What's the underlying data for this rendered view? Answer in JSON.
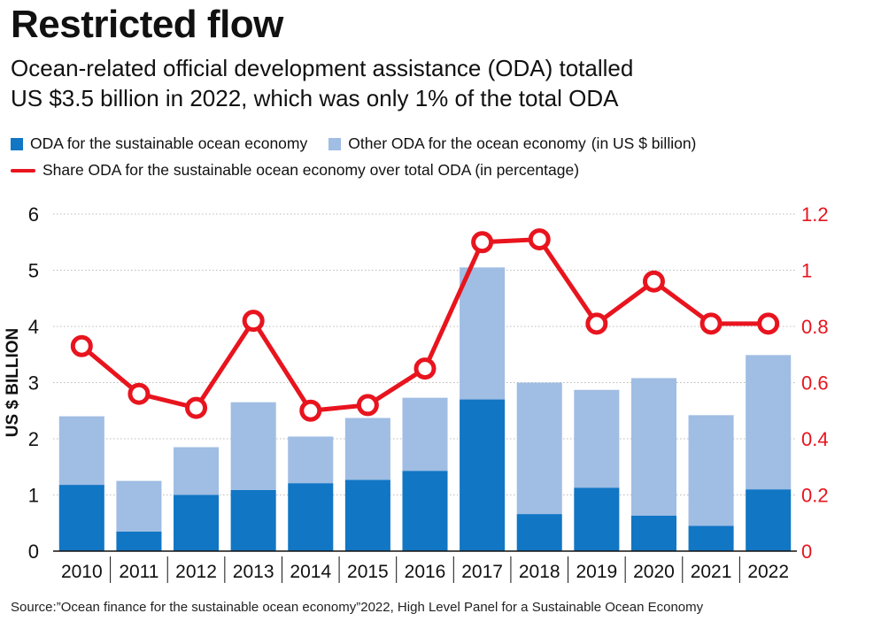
{
  "title": "Restricted flow",
  "subtitle_line1": "Ocean-related official development assistance (ODA) totalled",
  "subtitle_line2": "US $3.5 billion in 2022, which was only 1% of the total ODA",
  "legend": {
    "sustainable": "ODA for the sustainable ocean economy",
    "other": "Other ODA for the ocean economy",
    "units": "(in US $ billion)",
    "share": "Share ODA for the sustainable ocean economy over total ODA (in percentage)"
  },
  "colors": {
    "sustainable": "#1176c4",
    "other": "#a0bde3",
    "share": "#e8141e",
    "grid": "#bbbbbb"
  },
  "source": "Source:”Ocean finance for the sustainable ocean economy”2022, High Level Panel for a Sustainable Ocean Economy",
  "chart_data": {
    "type": "bar",
    "stacked": true,
    "categories": [
      "2010",
      "2011",
      "2012",
      "2013",
      "2014",
      "2015",
      "2016",
      "2017",
      "2018",
      "2019",
      "2020",
      "2021",
      "2022"
    ],
    "series": [
      {
        "name": "ODA for the sustainable ocean economy",
        "axis": "left",
        "values": [
          1.18,
          0.35,
          1.0,
          1.09,
          1.21,
          1.27,
          1.43,
          2.7,
          0.66,
          1.13,
          0.63,
          0.45,
          1.1
        ]
      },
      {
        "name": "Other ODA for the ocean economy",
        "axis": "left",
        "values": [
          1.22,
          0.9,
          0.85,
          1.56,
          0.83,
          1.1,
          1.3,
          2.35,
          2.34,
          1.74,
          2.45,
          1.97,
          2.39
        ]
      },
      {
        "name": "Share ODA for the sustainable ocean economy over total ODA",
        "type": "line",
        "axis": "right",
        "values": [
          0.73,
          0.56,
          0.51,
          0.82,
          0.5,
          0.52,
          0.65,
          1.1,
          1.11,
          0.81,
          0.96,
          0.81,
          0.81
        ]
      }
    ],
    "ylabel": "US $ BILLION",
    "ylim": [
      0,
      6
    ],
    "yticks": [
      "0",
      "1",
      "2",
      "3",
      "4",
      "5",
      "6"
    ],
    "y2lim": [
      0,
      1.2
    ],
    "y2ticks": [
      "0",
      "0.2",
      "0.4",
      "0.6",
      "0.8",
      "1",
      "1.2"
    ],
    "grid": true
  }
}
